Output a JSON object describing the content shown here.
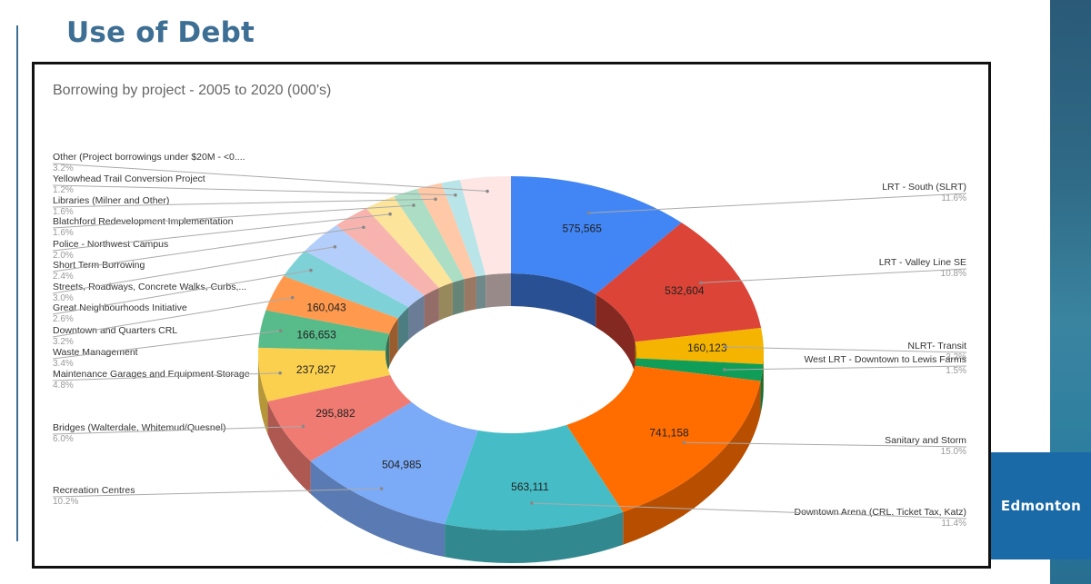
{
  "page": {
    "title": "Use of Debt",
    "logo_text": "Edmonton"
  },
  "chart_data": {
    "type": "pie",
    "donut": true,
    "title": "Borrowing by project - 2005 to 2020 (000's)",
    "slices": [
      {
        "label": "LRT - South (SLRT)",
        "percent": "11.6%",
        "value": 575565,
        "value_label": "575,565",
        "color": "#4285f4"
      },
      {
        "label": "LRT - Valley Line SE",
        "percent": "10.8%",
        "value": 532604,
        "value_label": "532,604",
        "color": "#db4437"
      },
      {
        "label": "NLRT- Transit",
        "percent": "3.2%",
        "value": 160123,
        "value_label": "160,123",
        "color": "#f4b400"
      },
      {
        "label": "West LRT - Downtown to Lewis Farms",
        "percent": "1.5%",
        "value": 74000,
        "value_label": "",
        "color": "#0f9d58"
      },
      {
        "label": "Sanitary and Storm",
        "percent": "15.0%",
        "value": 741158,
        "value_label": "741,158",
        "color": "#ff6d00"
      },
      {
        "label": "Downtown Arena (CRL, Ticket Tax, Katz)",
        "percent": "11.4%",
        "value": 563111,
        "value_label": "563,111",
        "color": "#46bdc6"
      },
      {
        "label": "Recreation Centres",
        "percent": "10.2%",
        "value": 504985,
        "value_label": "504,985",
        "color": "#7baaf7"
      },
      {
        "label": "Bridges (Walterdale, Whitemud/Quesnel)",
        "percent": "6.0%",
        "value": 295882,
        "value_label": "295,882",
        "color": "#f07b72"
      },
      {
        "label": "Maintenance Garages and Equipment Storage",
        "percent": "4.8%",
        "value": 237827,
        "value_label": "237,827",
        "color": "#fcd04f"
      },
      {
        "label": "Waste Management",
        "percent": "3.4%",
        "value": 166653,
        "value_label": "166,653",
        "color": "#57bb8a"
      },
      {
        "label": "Downtown and Quarters CRL",
        "percent": "3.2%",
        "value": 160043,
        "value_label": "160,043",
        "color": "#ff994d"
      },
      {
        "label": "Great Neighbourhoods Initiative",
        "percent": "2.6%",
        "value": 128000,
        "value_label": "",
        "color": "#7ed1d7"
      },
      {
        "label": "Streets, Roadways, Concrete Walks, Curbs,...",
        "percent": "3.0%",
        "value": 148000,
        "value_label": "",
        "color": "#b3cefb"
      },
      {
        "label": "Short Term Borrowing",
        "percent": "2.4%",
        "value": 119000,
        "value_label": "",
        "color": "#f7b4ae"
      },
      {
        "label": "Police - Northwest Campus",
        "percent": "2.0%",
        "value": 99000,
        "value_label": "",
        "color": "#fde49b"
      },
      {
        "label": "Blatchford Redevelopment Implementation",
        "percent": "1.6%",
        "value": 79000,
        "value_label": "",
        "color": "#abdec5"
      },
      {
        "label": "Libraries (Milner and Other)",
        "percent": "1.6%",
        "value": 79000,
        "value_label": "",
        "color": "#ffc8a6"
      },
      {
        "label": "Yellowhead Trail Conversion Project",
        "percent": "1.2%",
        "value": 59000,
        "value_label": "",
        "color": "#b9e4e8"
      },
      {
        "label": "Other (Project borrowings under $20M - <0....",
        "percent": "3.2%",
        "value": 158000,
        "value_label": "",
        "color": "#fde6e4"
      }
    ]
  }
}
